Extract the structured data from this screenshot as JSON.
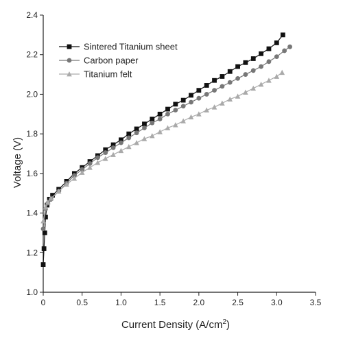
{
  "chart_data": {
    "type": "line",
    "title": "",
    "xlabel": "Current Density (A/cm",
    "xlabel_sup": "2",
    "xlabel_tail": ")",
    "ylabel": "Voltage (V)",
    "xlim": [
      0,
      3.5
    ],
    "ylim": [
      1.0,
      2.4
    ],
    "xticks": [
      "0",
      "0.5",
      "1.0",
      "1.5",
      "2.0",
      "2.5",
      "3.0",
      "3.5"
    ],
    "yticks": [
      "1.0",
      "1.2",
      "1.4",
      "1.6",
      "1.8",
      "2.0",
      "2.2",
      "2.4"
    ],
    "grid": false,
    "legend_position": "top-left",
    "series": [
      {
        "name": "Sintered Titanium sheet",
        "marker": "square",
        "color": "#111111",
        "x": [
          0.0,
          0.01,
          0.02,
          0.03,
          0.05,
          0.08,
          0.12,
          0.2,
          0.3,
          0.4,
          0.5,
          0.6,
          0.7,
          0.8,
          0.9,
          1.0,
          1.1,
          1.2,
          1.3,
          1.4,
          1.5,
          1.6,
          1.7,
          1.8,
          1.9,
          2.0,
          2.1,
          2.2,
          2.3,
          2.4,
          2.5,
          2.6,
          2.7,
          2.8,
          2.9,
          3.0,
          3.08
        ],
        "y": [
          1.14,
          1.22,
          1.3,
          1.38,
          1.44,
          1.47,
          1.49,
          1.52,
          1.56,
          1.6,
          1.63,
          1.66,
          1.69,
          1.72,
          1.745,
          1.77,
          1.8,
          1.825,
          1.85,
          1.875,
          1.9,
          1.925,
          1.95,
          1.97,
          1.995,
          2.02,
          2.045,
          2.07,
          2.09,
          2.115,
          2.14,
          2.16,
          2.18,
          2.205,
          2.23,
          2.26,
          2.3
        ]
      },
      {
        "name": "Carbon paper",
        "marker": "circle",
        "color": "#777777",
        "x": [
          0.0,
          0.03,
          0.06,
          0.1,
          0.2,
          0.3,
          0.4,
          0.5,
          0.6,
          0.7,
          0.8,
          0.9,
          1.0,
          1.1,
          1.2,
          1.3,
          1.4,
          1.5,
          1.6,
          1.7,
          1.8,
          1.9,
          2.0,
          2.1,
          2.2,
          2.3,
          2.4,
          2.5,
          2.6,
          2.7,
          2.8,
          2.9,
          3.0,
          3.1,
          3.17
        ],
        "y": [
          1.32,
          1.42,
          1.45,
          1.47,
          1.51,
          1.55,
          1.59,
          1.62,
          1.65,
          1.68,
          1.705,
          1.73,
          1.755,
          1.78,
          1.805,
          1.83,
          1.855,
          1.875,
          1.9,
          1.92,
          1.94,
          1.96,
          1.98,
          2.0,
          2.02,
          2.04,
          2.06,
          2.08,
          2.1,
          2.12,
          2.14,
          2.165,
          2.19,
          2.22,
          2.24
        ]
      },
      {
        "name": "Titanium felt",
        "marker": "triangle",
        "color": "#aaaaaa",
        "x": [
          0.0,
          0.03,
          0.06,
          0.1,
          0.2,
          0.3,
          0.4,
          0.5,
          0.6,
          0.7,
          0.8,
          0.9,
          1.0,
          1.1,
          1.2,
          1.3,
          1.4,
          1.5,
          1.6,
          1.7,
          1.8,
          1.9,
          2.0,
          2.1,
          2.2,
          2.3,
          2.4,
          2.5,
          2.6,
          2.7,
          2.8,
          2.9,
          3.0,
          3.07
        ],
        "y": [
          1.36,
          1.43,
          1.455,
          1.475,
          1.51,
          1.545,
          1.575,
          1.605,
          1.63,
          1.655,
          1.675,
          1.695,
          1.715,
          1.735,
          1.755,
          1.775,
          1.79,
          1.81,
          1.83,
          1.845,
          1.865,
          1.885,
          1.9,
          1.92,
          1.935,
          1.955,
          1.975,
          1.99,
          2.01,
          2.03,
          2.05,
          2.07,
          2.09,
          2.11
        ]
      }
    ]
  }
}
